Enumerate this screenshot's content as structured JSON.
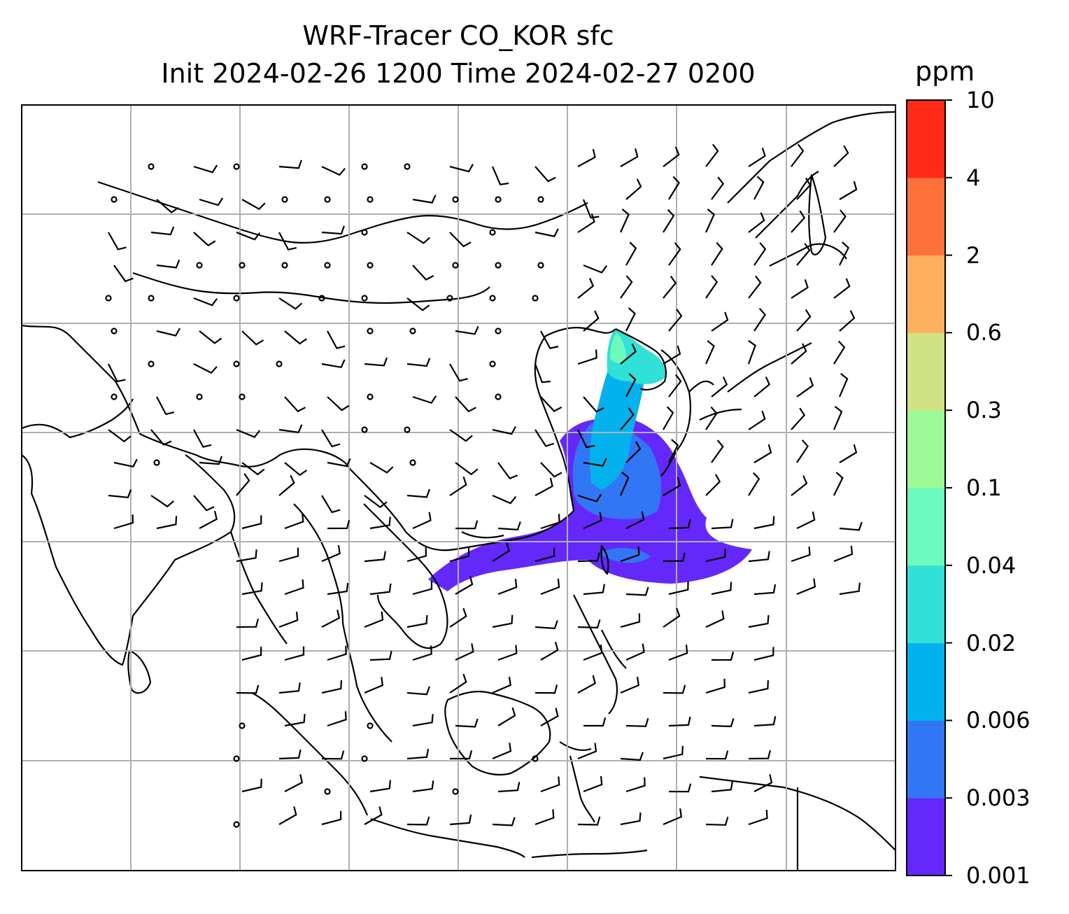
{
  "title": {
    "line1": "WRF-Tracer CO_KOR sfc",
    "line2": "Init 2024-02-26 1200 Time 2024-02-27 0200"
  },
  "colorbar": {
    "unit": "ppm",
    "levels": [
      "0.001",
      "0.003",
      "0.006",
      "0.02",
      "0.04",
      "0.1",
      "0.3",
      "0.6",
      "2",
      "4",
      "10"
    ],
    "colors": [
      "#6428fa",
      "#3176f5",
      "#03b2ec",
      "#31e0d6",
      "#6cfabe",
      "#9dfa96",
      "#d1e285",
      "#feb05e",
      "#ff713a",
      "#ff2a18"
    ]
  },
  "map": {
    "gridline_color": "#b0b0b0",
    "coastline_color": "#000000",
    "barb_color": "#000000"
  }
}
